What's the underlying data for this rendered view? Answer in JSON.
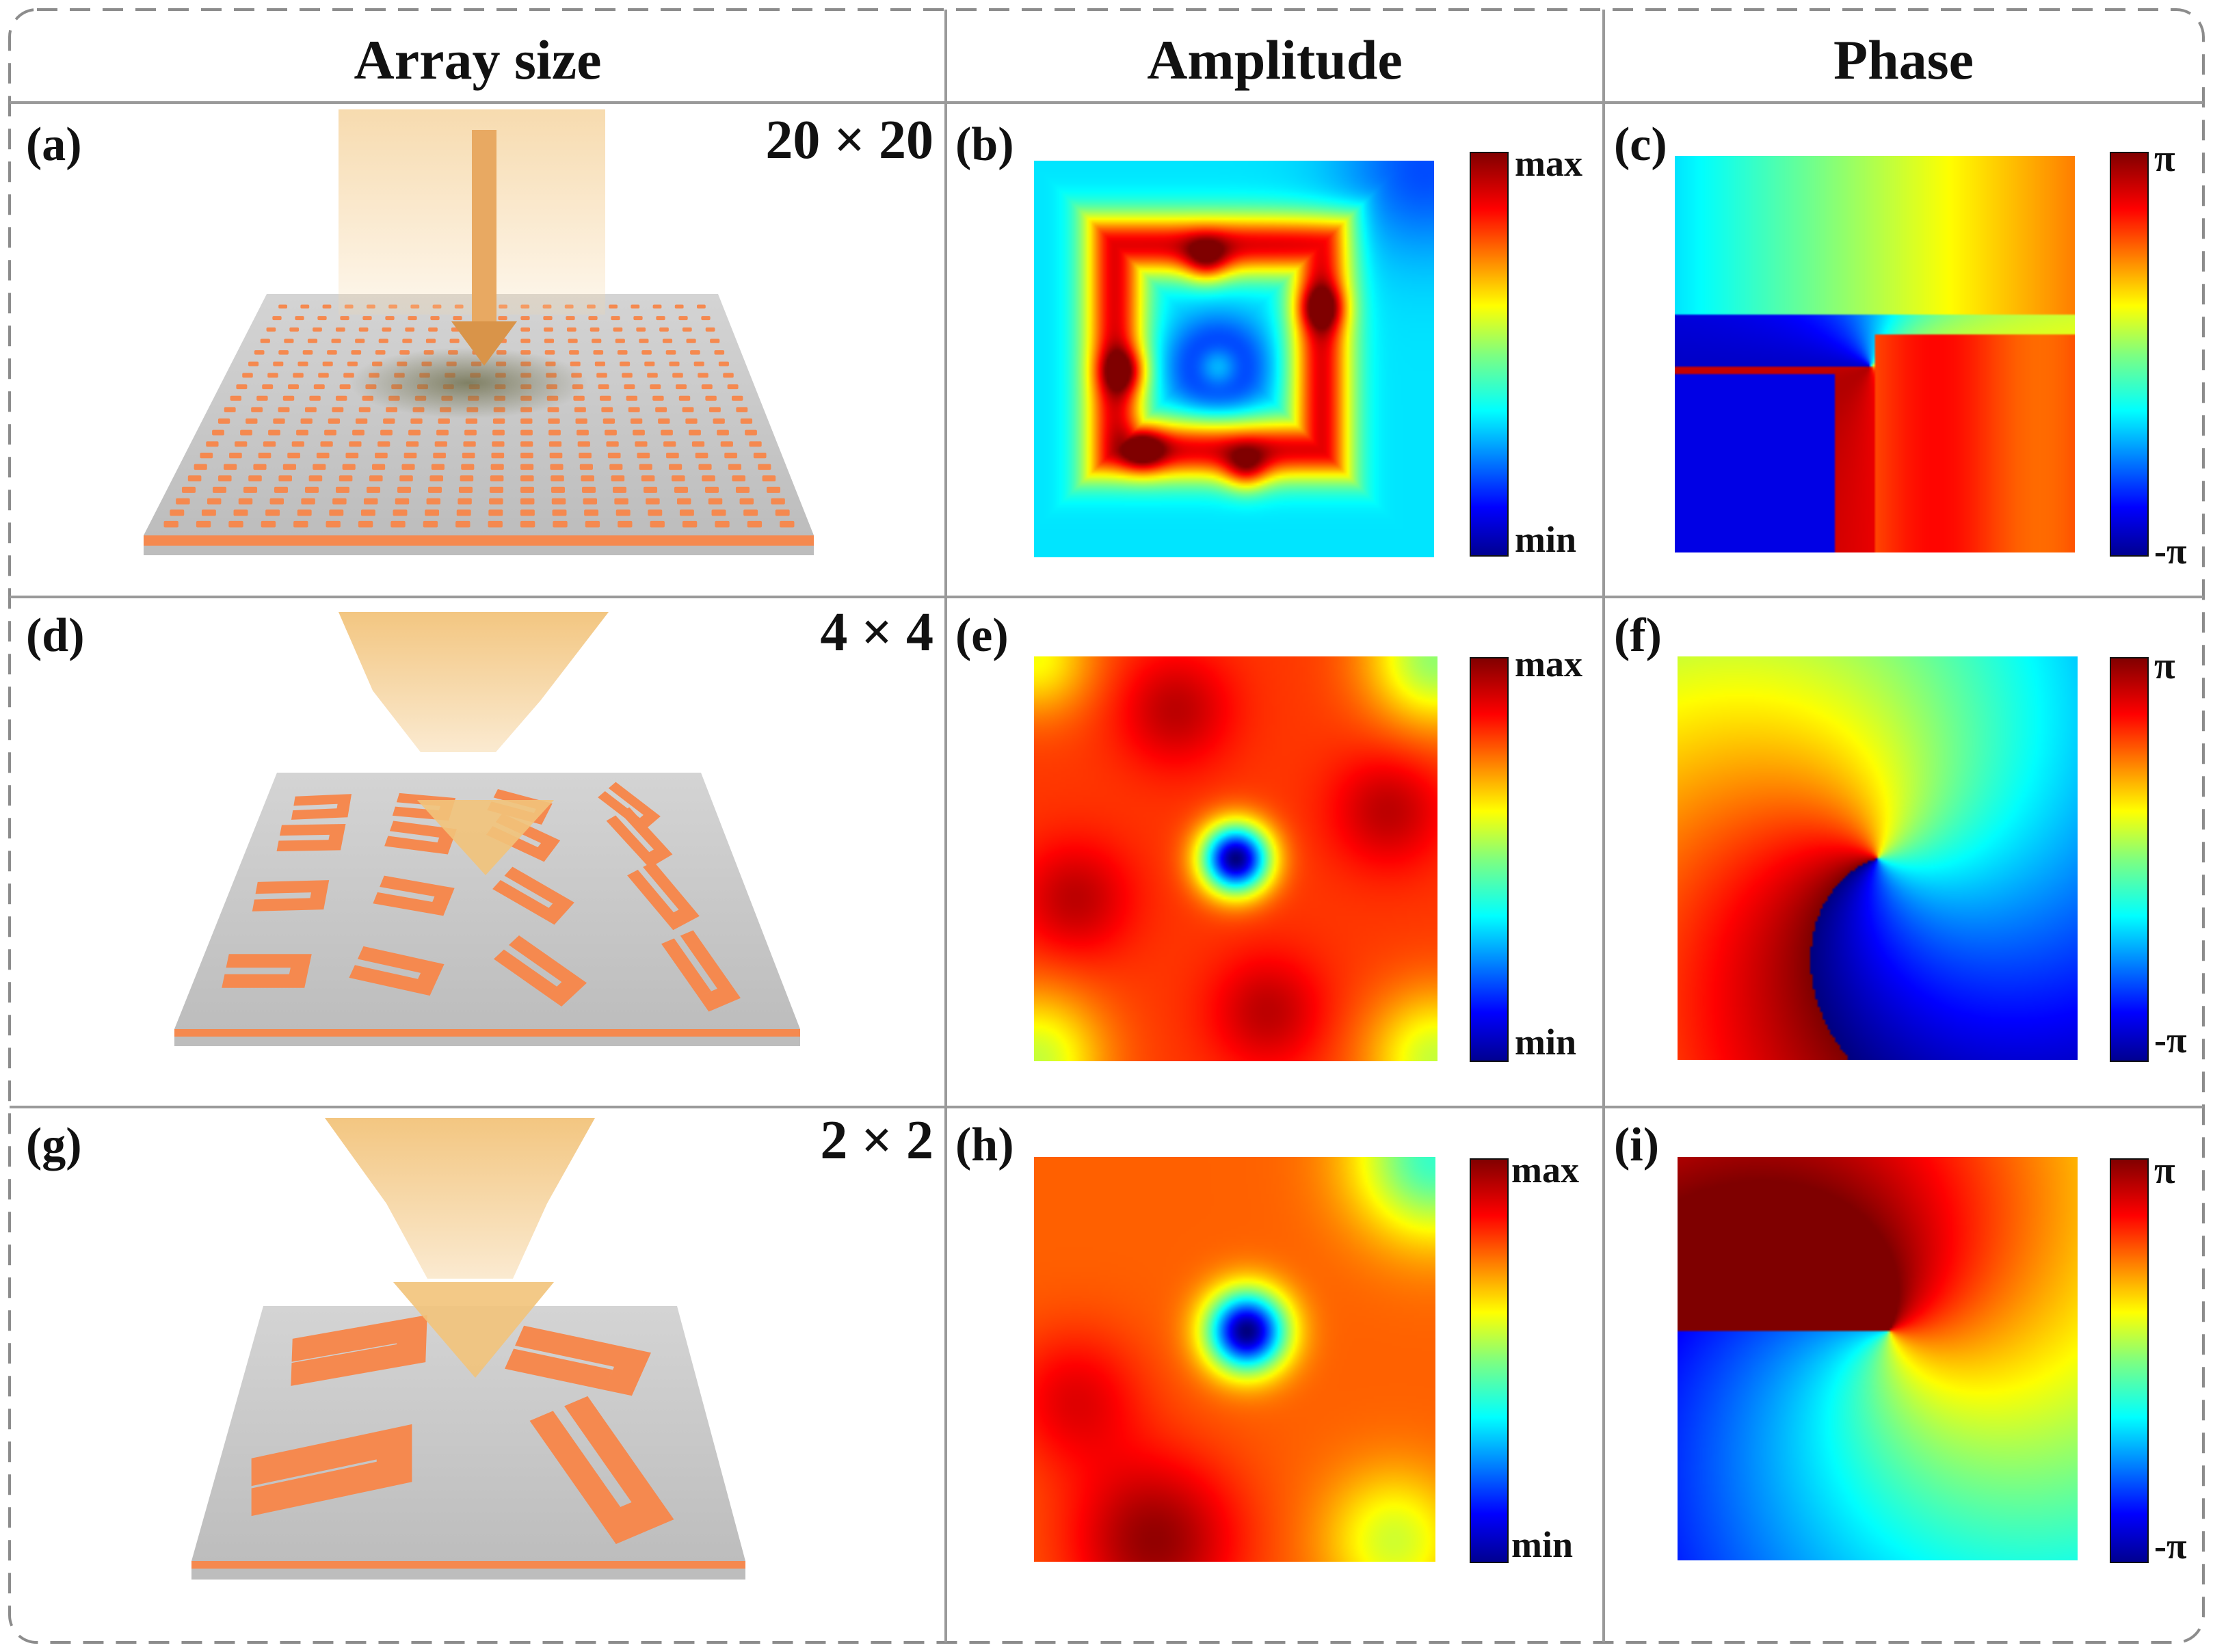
{
  "headers": {
    "array_size": "Array size",
    "amplitude": "Amplitude",
    "phase": "Phase"
  },
  "rows": [
    {
      "schematic_label": "(a)",
      "array_size": "20 × 20",
      "amplitude_label": "(b)",
      "phase_label": "(c)"
    },
    {
      "schematic_label": "(d)",
      "array_size": "4 × 4",
      "amplitude_label": "(e)",
      "phase_label": "(f)"
    },
    {
      "schematic_label": "(g)",
      "array_size": "2 × 2",
      "amplitude_label": "(h)",
      "phase_label": "(i)"
    }
  ],
  "colorbars": {
    "amplitude": {
      "max_label": "max",
      "min_label": "min"
    },
    "phase": {
      "max_label": "π",
      "min_label": "-π"
    }
  },
  "colors": {
    "metasurface_element": "#f5894f",
    "substrate": "#c9c9c9",
    "beam": "#f2c37a",
    "grid_line": "#9a9a9a",
    "frame_dash": "#8c8c8c"
  },
  "icons": {
    "incident_beam": "arrow-down-icon"
  }
}
